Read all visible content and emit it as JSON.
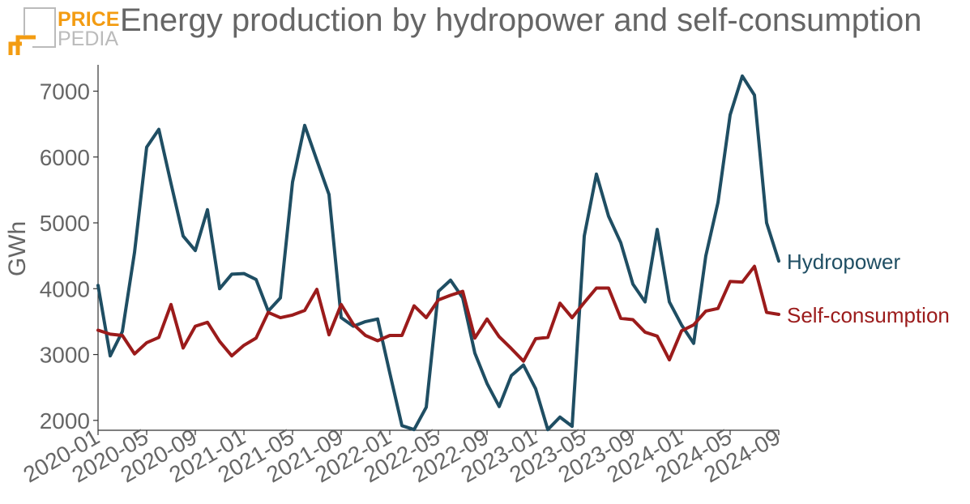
{
  "logo": {
    "top": "PRICE",
    "bottom": "PEDIA"
  },
  "colors": {
    "hydro": "#1f4e63",
    "self": "#9b1b1b",
    "text": "#666666",
    "logo_orange": "#f39c12",
    "logo_gray": "#bbbbbb"
  },
  "chart_data": {
    "type": "line",
    "title": "Energy production by hydropower and self-consumption",
    "ylabel": "GWh",
    "ylim": [
      1850,
      7400
    ],
    "yticks": [
      2000,
      3000,
      4000,
      5000,
      6000,
      7000
    ],
    "xticks": [
      "2020-01",
      "2020-05",
      "2020-09",
      "2021-01",
      "2021-05",
      "2021-09",
      "2022-01",
      "2022-05",
      "2022-09",
      "2023-01",
      "2023-05",
      "2023-09",
      "2024-01",
      "2024-05",
      "2024-09"
    ],
    "start": "2020-01",
    "series": [
      {
        "name": "Hydropower",
        "color": "#1f4e63",
        "values": [
          4050,
          2980,
          3350,
          4550,
          6150,
          6420,
          5600,
          4800,
          4580,
          5200,
          4000,
          4220,
          4230,
          4140,
          3660,
          3860,
          5620,
          6480,
          5950,
          5430,
          3560,
          3430,
          3500,
          3540,
          2720,
          1920,
          1860,
          2200,
          3960,
          4130,
          3860,
          3020,
          2560,
          2210,
          2680,
          2840,
          2480,
          1860,
          2050,
          1910,
          4800,
          5740,
          5100,
          4700,
          4070,
          3800,
          4900,
          3800,
          3450,
          3170,
          4500,
          5310,
          6640,
          7230,
          6940,
          5000,
          4420
        ]
      },
      {
        "name": "Self-consumption",
        "color": "#9b1b1b",
        "values": [
          3370,
          3310,
          3290,
          3010,
          3180,
          3260,
          3760,
          3100,
          3430,
          3490,
          3200,
          2980,
          3140,
          3250,
          3640,
          3560,
          3600,
          3670,
          3990,
          3300,
          3760,
          3460,
          3290,
          3210,
          3290,
          3290,
          3740,
          3560,
          3830,
          3900,
          3960,
          3250,
          3540,
          3270,
          3090,
          2900,
          3240,
          3260,
          3780,
          3560,
          3790,
          4010,
          4010,
          3550,
          3530,
          3340,
          3280,
          2920,
          3360,
          3450,
          3660,
          3700,
          4110,
          4100,
          4340,
          3640,
          3610
        ]
      }
    ]
  }
}
